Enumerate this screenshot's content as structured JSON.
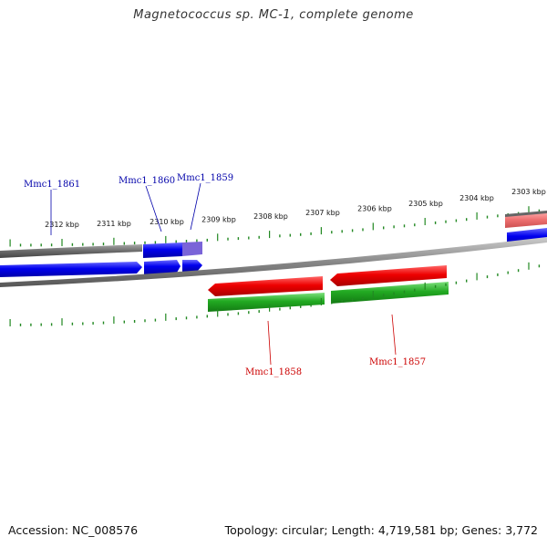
{
  "title": "Magnetococcus sp. MC-1, complete genome",
  "footer": {
    "accession_text": "Accession: NC_008576",
    "summary_text": "Topology: circular; Length: 4,719,581 bp; Genes: 3,772"
  },
  "scale_labels": [
    "2312 kbp",
    "2311 kbp",
    "2310 kbp",
    "2309 kbp",
    "2308 kbp",
    "2307 kbp",
    "2306 kbp",
    "2305 kbp",
    "2304 kbp",
    "2303 kbp"
  ],
  "genes_forward": [
    {
      "label": "Mmc1_1861"
    },
    {
      "label": "Mmc1_1860"
    },
    {
      "label": "Mmc1_1859"
    }
  ],
  "genes_reverse": [
    {
      "label": "Mmc1_1858"
    },
    {
      "label": "Mmc1_1857"
    }
  ],
  "colors": {
    "forward_strand": "#0000ee",
    "reverse_strand": "#ee0000",
    "forward_label": "#0000aa",
    "reverse_label": "#cc0000",
    "feature_green": "#22aa22",
    "tick_green": "#228822",
    "backbone": "#777777"
  }
}
